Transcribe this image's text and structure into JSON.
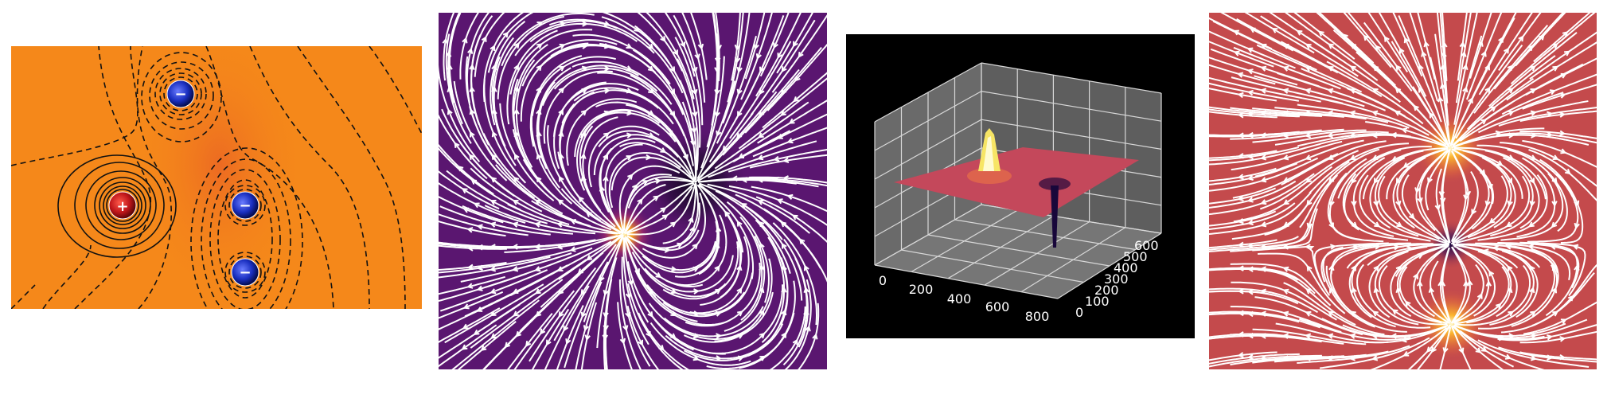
{
  "panels": {
    "contour": {
      "background": "#f5881a",
      "charges": [
        {
          "sign": "+",
          "label": "+",
          "color": "#c0161a"
        },
        {
          "sign": "-",
          "label": "−",
          "color": "#1a2fc0"
        },
        {
          "sign": "-",
          "label": "−",
          "color": "#1a2fc0"
        },
        {
          "sign": "-",
          "label": "−",
          "color": "#1a2fc0"
        }
      ]
    },
    "streamplot_dipole": {
      "background": "#5a1670",
      "line_color": "#ffffff",
      "hotspot_color": "#f6a21f",
      "sink_color": "#10051c"
    },
    "surface_3d": {
      "background": "#000000",
      "surface_color": "#c4485b",
      "peak_color": "#f7e565",
      "x_ticks": [
        "0",
        "200",
        "400",
        "600",
        "800"
      ],
      "y_ticks": [
        "0",
        "100",
        "200",
        "300",
        "400",
        "500",
        "600"
      ]
    },
    "streamplot_triple": {
      "background": "#c44a4c",
      "line_color": "#ffffff",
      "hotspot_color": "#fbb52e",
      "sink_color": "#1c0a40"
    }
  }
}
